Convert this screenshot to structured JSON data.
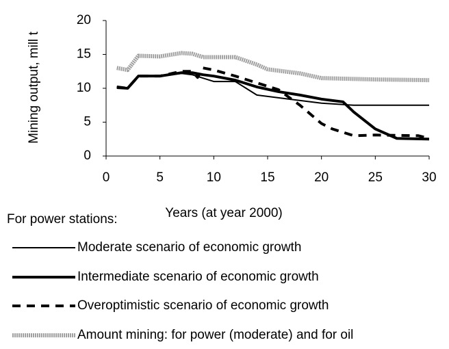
{
  "chart_data": {
    "type": "line",
    "ylabel": "Mining output, mill t",
    "xlabel": "Years (at year 2000)",
    "legend_title": "For power stations:",
    "xlim": [
      0,
      30
    ],
    "xticks": [
      0,
      5,
      10,
      15,
      20,
      25,
      30
    ],
    "ylim": [
      0,
      20
    ],
    "yticks": [
      0,
      5,
      10,
      15,
      20
    ],
    "grid": false,
    "legend": "bottom",
    "series": [
      {
        "name": "Moderate scenario of economic growth",
        "color": "#000000",
        "line_style": "thin",
        "x": [
          1,
          2,
          3,
          5,
          7,
          8,
          9,
          10,
          12,
          13,
          14,
          15,
          17,
          20,
          22,
          23,
          30
        ],
        "values": [
          10.2,
          10,
          11.8,
          11.8,
          12.2,
          12,
          11.5,
          11,
          11,
          10,
          9,
          8.8,
          8.4,
          7.8,
          7.6,
          7.5,
          7.5
        ]
      },
      {
        "name": "Intermediate scenario of economic growth",
        "color": "#000000",
        "line_style": "thick",
        "x": [
          1,
          2,
          3,
          5,
          7,
          8,
          9,
          10,
          12,
          14,
          16,
          18,
          20,
          22,
          23,
          25,
          27,
          30
        ],
        "values": [
          10.1,
          10,
          11.8,
          11.8,
          12.3,
          12.3,
          12,
          11.8,
          11.2,
          10.2,
          9.5,
          9,
          8.4,
          8,
          6.5,
          4,
          2.6,
          2.5
        ]
      },
      {
        "name": "Overoptimistic scenario of economic growth",
        "color": "#000000",
        "line_style": "dashed",
        "x": [
          1,
          2,
          3,
          5,
          7,
          8,
          8.5,
          9,
          10,
          12,
          14,
          16,
          18,
          20,
          21,
          23,
          25,
          29,
          30
        ],
        "values": [
          10.2,
          10,
          11.8,
          11.8,
          12.5,
          12.5,
          11.6,
          13,
          12.7,
          11.8,
          10.8,
          9.8,
          7.5,
          4.8,
          4,
          3,
          3.1,
          3,
          2.6
        ]
      },
      {
        "name": "Amount mining: for power (moderate) and for oil",
        "color": "#a0a0a0",
        "line_style": "dotted",
        "x": [
          1,
          2,
          3,
          5,
          7,
          8,
          9,
          12,
          14,
          15,
          18,
          20,
          25,
          30
        ],
        "values": [
          13,
          12.7,
          14.8,
          14.7,
          15.2,
          15.1,
          14.6,
          14.6,
          13.5,
          12.8,
          12.2,
          11.5,
          11.3,
          11.2
        ]
      }
    ]
  }
}
